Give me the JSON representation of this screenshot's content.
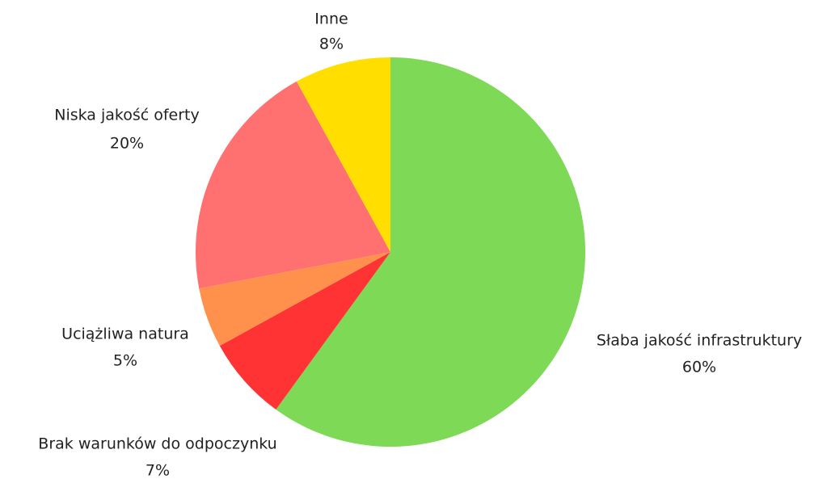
{
  "chart_data": {
    "type": "pie",
    "categories": [
      "Słaba jakość infrastruktury",
      "Brak warunków do odpoczynku",
      "Uciążliwa natura",
      "Niska jakość oferty",
      "Inne"
    ],
    "values": [
      60,
      7,
      5,
      20,
      8
    ],
    "value_labels": [
      "60%",
      "7%",
      "5%",
      "20%",
      "8%"
    ],
    "colors": [
      "#7ed957",
      "#ff3333",
      "#ff914d",
      "#ff7070",
      "#ffde00"
    ]
  }
}
